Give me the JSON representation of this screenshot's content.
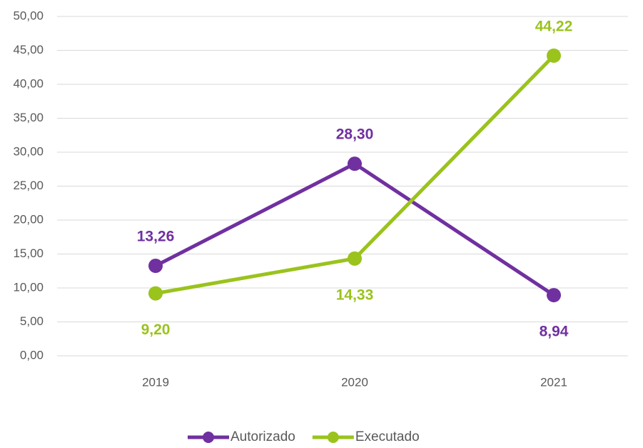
{
  "chart_data": {
    "type": "line",
    "categories": [
      "2019",
      "2020",
      "2021"
    ],
    "series": [
      {
        "name": "Autorizado",
        "color": "#7030a0",
        "values": [
          13.26,
          28.3,
          8.94
        ],
        "value_labels": [
          "13,26",
          "28,30",
          "8,94"
        ]
      },
      {
        "name": "Executado",
        "color": "#9ac31c",
        "values": [
          9.2,
          14.33,
          44.22
        ],
        "value_labels": [
          "9,20",
          "14,33",
          "44,22"
        ]
      }
    ],
    "ylim": [
      0,
      50
    ],
    "yticks": [
      {
        "value": 0,
        "label": "0,00"
      },
      {
        "value": 5,
        "label": "5,00"
      },
      {
        "value": 10,
        "label": "10,00"
      },
      {
        "value": 15,
        "label": "15,00"
      },
      {
        "value": 20,
        "label": "20,00"
      },
      {
        "value": 25,
        "label": "25,00"
      },
      {
        "value": 30,
        "label": "30,00"
      },
      {
        "value": 35,
        "label": "35,00"
      },
      {
        "value": 40,
        "label": "40,00"
      },
      {
        "value": 45,
        "label": "45,00"
      },
      {
        "value": 50,
        "label": "50,00"
      }
    ],
    "grid": true,
    "legend": "bottom"
  }
}
